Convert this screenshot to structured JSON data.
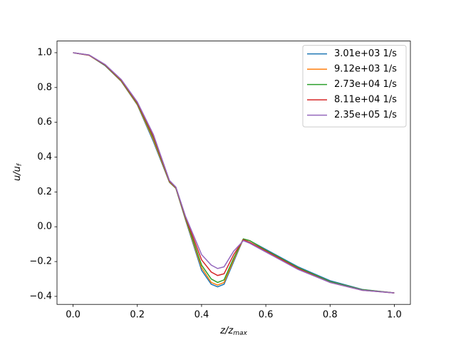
{
  "chart_data": {
    "type": "line",
    "xlabel": [
      "z/z",
      "max"
    ],
    "ylabel": [
      "u/u",
      "f"
    ],
    "x": [
      0,
      0.05,
      0.1,
      0.15,
      0.2,
      0.25,
      0.3,
      0.32,
      0.35,
      0.4,
      0.43,
      0.45,
      0.47,
      0.5,
      0.53,
      0.55,
      0.6,
      0.7,
      0.8,
      0.9,
      1.0
    ],
    "series": [
      {
        "name": "3.01e+03 1/s",
        "color": "#1f77b4",
        "values": [
          1.0,
          0.985,
          0.925,
          0.835,
          0.7,
          0.49,
          0.255,
          0.22,
          0.04,
          -0.25,
          -0.33,
          -0.345,
          -0.33,
          -0.2,
          -0.07,
          -0.08,
          -0.13,
          -0.23,
          -0.31,
          -0.36,
          -0.38
        ]
      },
      {
        "name": "9.12e+03 1/s",
        "color": "#ff7f0e",
        "values": [
          1.0,
          0.985,
          0.927,
          0.837,
          0.703,
          0.5,
          0.257,
          0.222,
          0.045,
          -0.235,
          -0.32,
          -0.335,
          -0.32,
          -0.19,
          -0.07,
          -0.08,
          -0.135,
          -0.235,
          -0.315,
          -0.362,
          -0.38
        ]
      },
      {
        "name": "2.73e+04 1/s",
        "color": "#2ca02c",
        "values": [
          1.0,
          0.986,
          0.928,
          0.84,
          0.707,
          0.51,
          0.26,
          0.224,
          0.05,
          -0.22,
          -0.3,
          -0.32,
          -0.305,
          -0.18,
          -0.07,
          -0.08,
          -0.135,
          -0.235,
          -0.315,
          -0.362,
          -0.38
        ]
      },
      {
        "name": "8.11e+04 1/s",
        "color": "#d62728",
        "values": [
          1.0,
          0.986,
          0.93,
          0.843,
          0.712,
          0.52,
          0.263,
          0.226,
          0.055,
          -0.19,
          -0.26,
          -0.28,
          -0.27,
          -0.16,
          -0.075,
          -0.09,
          -0.14,
          -0.24,
          -0.32,
          -0.365,
          -0.38
        ]
      },
      {
        "name": "2.35e+05 1/s",
        "color": "#9467bd",
        "values": [
          1.0,
          0.987,
          0.932,
          0.846,
          0.717,
          0.53,
          0.266,
          0.228,
          0.06,
          -0.16,
          -0.22,
          -0.24,
          -0.23,
          -0.14,
          -0.08,
          -0.095,
          -0.145,
          -0.245,
          -0.32,
          -0.365,
          -0.38
        ]
      }
    ],
    "xlim": [
      -0.05,
      1.05
    ],
    "ylim": [
      -0.446,
      1.067
    ],
    "xticks": [
      {
        "value": 0,
        "label": "0.0"
      },
      {
        "value": 0.2,
        "label": "0.2"
      },
      {
        "value": 0.4,
        "label": "0.4"
      },
      {
        "value": 0.6,
        "label": "0.6"
      },
      {
        "value": 0.8,
        "label": "0.8"
      },
      {
        "value": 1.0,
        "label": "1.0"
      }
    ],
    "yticks": [
      {
        "value": -0.4,
        "label": "−0.4"
      },
      {
        "value": -0.2,
        "label": "−0.2"
      },
      {
        "value": 0,
        "label": "0.0"
      },
      {
        "value": 0.2,
        "label": "0.2"
      },
      {
        "value": 0.4,
        "label": "0.4"
      },
      {
        "value": 0.6,
        "label": "0.6"
      },
      {
        "value": 0.8,
        "label": "0.8"
      },
      {
        "value": 1.0,
        "label": "1.0"
      }
    ],
    "legend": "upper right"
  }
}
